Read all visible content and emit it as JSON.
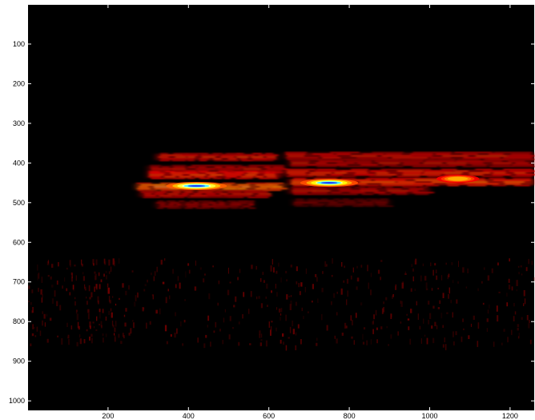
{
  "chart_data": {
    "type": "heatmap",
    "title": "",
    "xlabel": "",
    "ylabel": "",
    "xlim": [
      1,
      1260
    ],
    "ylim": [
      1,
      1024
    ],
    "y_reversed": true,
    "grid": false,
    "legend": false,
    "colormap": "hot",
    "background_color": "#000000",
    "x_ticks": [
      200,
      400,
      600,
      800,
      1000,
      1200
    ],
    "y_ticks": [
      100,
      200,
      300,
      400,
      500,
      600,
      700,
      800,
      900,
      1000
    ],
    "x_tick_labels": [
      "200",
      "400",
      "600",
      "800",
      "1000",
      "1200"
    ],
    "y_tick_labels": [
      "100",
      "200",
      "300",
      "400",
      "500",
      "600",
      "700",
      "800",
      "900",
      "1000"
    ],
    "hotspots": [
      {
        "x": 420,
        "y": 458,
        "intensity": 1.0
      },
      {
        "x": 750,
        "y": 450,
        "intensity": 0.95
      },
      {
        "x": 1070,
        "y": 440,
        "intensity": 0.7
      }
    ],
    "bands": [
      {
        "x_start": 320,
        "x_end": 620,
        "y": 385,
        "intensity": 0.55
      },
      {
        "x_start": 640,
        "x_end": 1260,
        "y": 382,
        "intensity": 0.5
      },
      {
        "x_start": 300,
        "x_end": 640,
        "y": 415,
        "intensity": 0.45
      },
      {
        "x_start": 650,
        "x_end": 1260,
        "y": 400,
        "intensity": 0.45
      },
      {
        "x_start": 300,
        "x_end": 630,
        "y": 430,
        "intensity": 0.65
      },
      {
        "x_start": 640,
        "x_end": 1260,
        "y": 425,
        "intensity": 0.6
      },
      {
        "x_start": 270,
        "x_end": 640,
        "y": 460,
        "intensity": 0.85
      },
      {
        "x_start": 650,
        "x_end": 1260,
        "y": 448,
        "intensity": 0.7
      },
      {
        "x_start": 280,
        "x_end": 600,
        "y": 478,
        "intensity": 0.5
      },
      {
        "x_start": 650,
        "x_end": 1000,
        "y": 470,
        "intensity": 0.45
      },
      {
        "x_start": 320,
        "x_end": 560,
        "y": 505,
        "intensity": 0.35
      },
      {
        "x_start": 660,
        "x_end": 900,
        "y": 500,
        "intensity": 0.25
      }
    ],
    "noise_region": {
      "x_start": 1,
      "x_end": 1260,
      "y_start": 640,
      "y_end": 860,
      "intensity": 0.18
    }
  },
  "colors": {
    "frame": "#ffffff",
    "plot_background": "#000000",
    "hot_dark_red": "#8b0000",
    "hot_red": "#ff2000",
    "hot_orange": "#ff8c00",
    "hot_yellow": "#ffff40",
    "peak_cyan": "#40ffff",
    "peak_blue": "#2040ff"
  }
}
